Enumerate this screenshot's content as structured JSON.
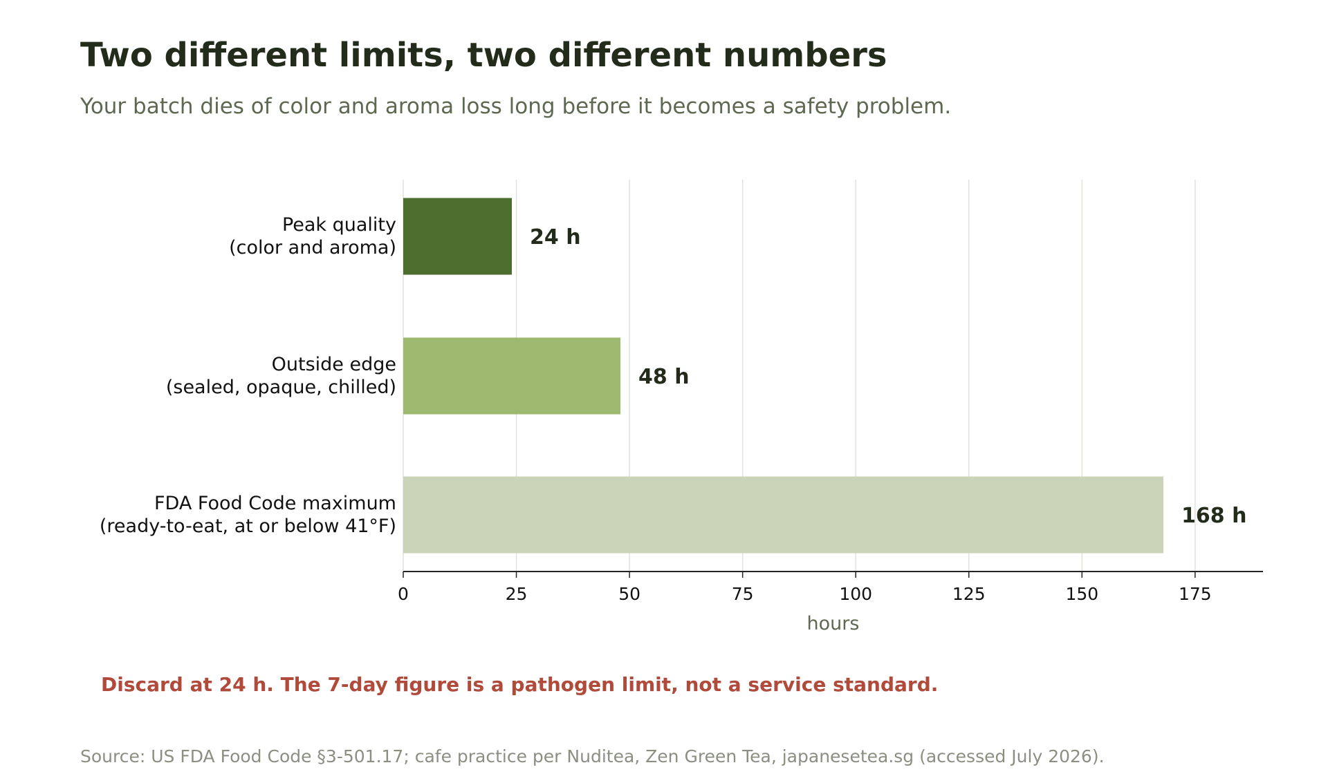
{
  "header": {
    "title": "Two different limits, two different numbers",
    "subtitle": "Your batch dies of color and aroma loss long before it becomes a safety problem."
  },
  "chart_data": {
    "type": "bar",
    "orientation": "horizontal",
    "categories": [
      [
        "Peak quality",
        "(color and aroma)"
      ],
      [
        "Outside edge",
        "(sealed, opaque, chilled)"
      ],
      [
        "FDA Food Code maximum",
        "(ready-to-eat, at or below 41°F)"
      ]
    ],
    "values": [
      24,
      48,
      168
    ],
    "value_labels": [
      "24 h",
      "48 h",
      "168 h"
    ],
    "bar_colors": [
      "#4d6e2e",
      "#9db86f",
      "#c9d4b8"
    ],
    "xlabel": "hours",
    "xlim": [
      0,
      190
    ],
    "xticks": [
      0,
      25,
      50,
      75,
      100,
      125,
      150,
      175
    ],
    "grid": "vertical"
  },
  "callout": "Discard at 24 h. The 7-day figure is a pathogen limit, not a service standard.",
  "source": "Source: US FDA Food Code §3-501.17; cafe practice per Nuditea, Zen Green Tea, japanesetea.sg (accessed July 2026).",
  "colors": {
    "title": "#232c1a",
    "subtitle": "#5e6851",
    "callout": "#b04a3b",
    "source": "#8b8f82",
    "grid": "#e0e2da",
    "axis": "#222222"
  }
}
